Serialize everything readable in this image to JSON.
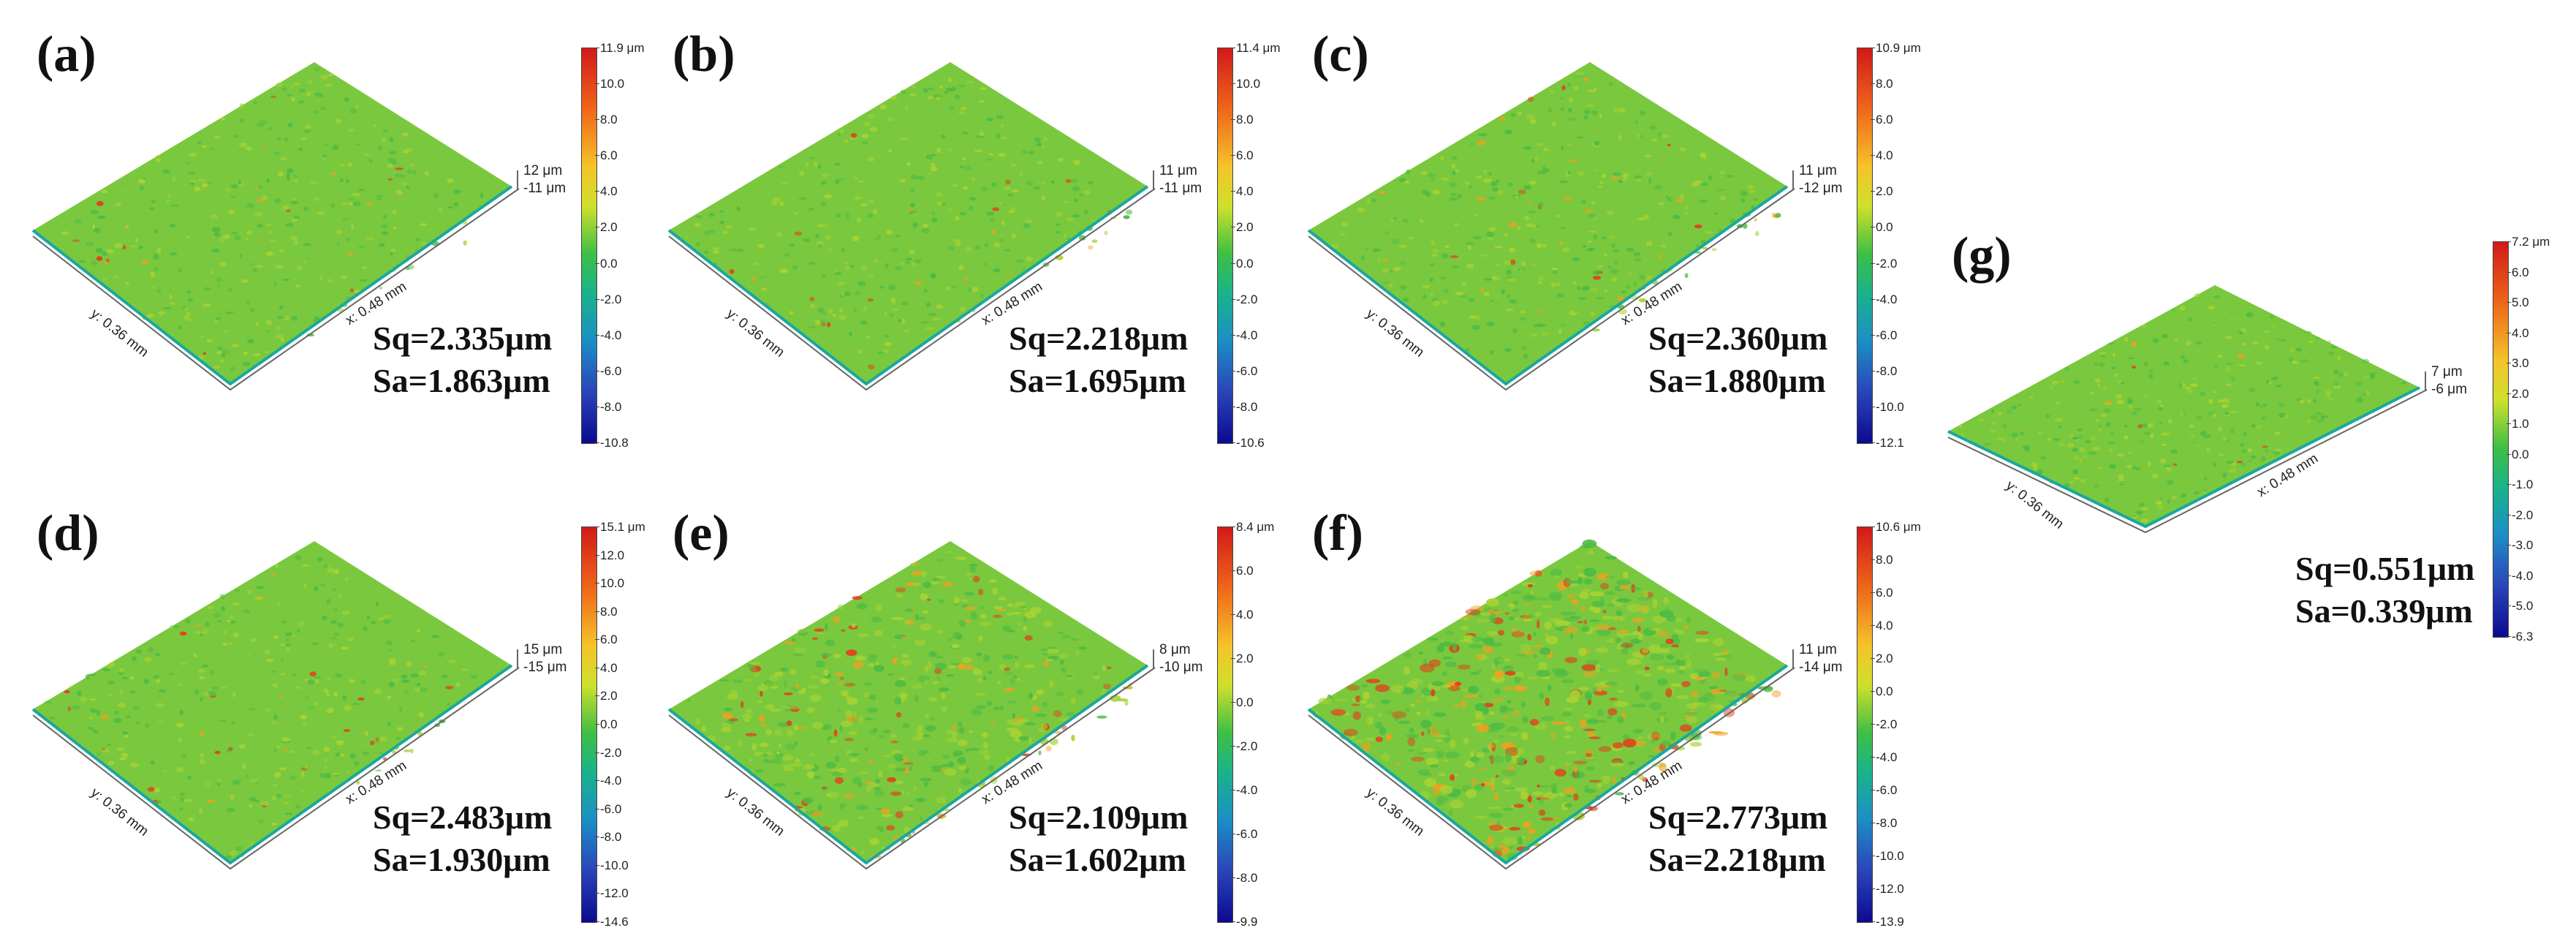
{
  "colors": {
    "surface_base": "#7ac83e",
    "surface_high": "#e2401b",
    "colorbar_top": "#d2191a",
    "colorbar_bottom": "#0c0a90"
  },
  "panels": [
    {
      "label": "(a)",
      "sq": "Sq=2.335μm",
      "sa": "Sa=1.863μm",
      "z_top": "12 μm",
      "z_bot": "-11 μm",
      "x_axis": "x: 0.48 mm",
      "y_axis": "y: 0.36 mm",
      "cbar": [
        "11.9 μm",
        "10.0",
        "8.0",
        "6.0",
        "4.0",
        "2.0",
        "0.0",
        "-2.0",
        "-4.0",
        "-6.0",
        "-8.0",
        "-10.8"
      ],
      "roughness_level": 0.15
    },
    {
      "label": "(b)",
      "sq": "Sq=2.218μm",
      "sa": "Sa=1.695μm",
      "z_top": "11 μm",
      "z_bot": "-11 μm",
      "x_axis": "x: 0.48 mm",
      "y_axis": "y: 0.36 mm",
      "cbar": [
        "11.4 μm",
        "10.0",
        "8.0",
        "6.0",
        "4.0",
        "2.0",
        "0.0",
        "-2.0",
        "-4.0",
        "-6.0",
        "-8.0",
        "-10.6"
      ],
      "roughness_level": 0.15
    },
    {
      "label": "(c)",
      "sq": "Sq=2.360μm",
      "sa": "Sa=1.880μm",
      "z_top": "11 μm",
      "z_bot": "-12 μm",
      "x_axis": "x: 0.48 mm",
      "y_axis": "y: 0.36 mm",
      "cbar": [
        "10.9 μm",
        "8.0",
        "6.0",
        "4.0",
        "2.0",
        "0.0",
        "-2.0",
        "-4.0",
        "-6.0",
        "-8.0",
        "-10.0",
        "-12.1"
      ],
      "roughness_level": 0.2
    },
    {
      "label": "(d)",
      "sq": "Sq=2.483μm",
      "sa": "Sa=1.930μm",
      "z_top": "15 μm",
      "z_bot": "-15 μm",
      "x_axis": "x: 0.48 mm",
      "y_axis": "y: 0.36 mm",
      "cbar": [
        "15.1 μm",
        "12.0",
        "10.0",
        "8.0",
        "6.0",
        "4.0",
        "2.0",
        "0.0",
        "-2.0",
        "-4.0",
        "-6.0",
        "-8.0",
        "-10.0",
        "-12.0",
        "-14.6"
      ],
      "roughness_level": 0.15
    },
    {
      "label": "(e)",
      "sq": "Sq=2.109μm",
      "sa": "Sa=1.602μm",
      "z_top": "8 μm",
      "z_bot": "-10 μm",
      "x_axis": "x: 0.48 mm",
      "y_axis": "y: 0.36 mm",
      "cbar": [
        "8.4 μm",
        "6.0",
        "4.0",
        "2.0",
        "0.0",
        "-2.0",
        "-4.0",
        "-6.0",
        "-8.0",
        "-9.9"
      ],
      "roughness_level": 0.5
    },
    {
      "label": "(f)",
      "sq": "Sq=2.773μm",
      "sa": "Sa=2.218μm",
      "z_top": "11 μm",
      "z_bot": "-14 μm",
      "x_axis": "x: 0.48 mm",
      "y_axis": "y: 0.36 mm",
      "cbar": [
        "10.6 μm",
        "8.0",
        "6.0",
        "4.0",
        "2.0",
        "0.0",
        "-2.0",
        "-4.0",
        "-6.0",
        "-8.0",
        "-10.0",
        "-12.0",
        "-13.9"
      ],
      "roughness_level": 0.8
    },
    {
      "label": "(g)",
      "sq": "Sq=0.551μm",
      "sa": "Sa=0.339μm",
      "z_top": "7 μm",
      "z_bot": "-6 μm",
      "x_axis": "x: 0.48 mm",
      "y_axis": "y: 0.36 mm",
      "cbar": [
        "7.2 μm",
        "6.0",
        "5.0",
        "4.0",
        "3.0",
        "2.0",
        "1.0",
        "0.0",
        "-1.0",
        "-2.0",
        "-3.0",
        "-4.0",
        "-5.0",
        "-6.3"
      ],
      "roughness_level": 0.1
    }
  ]
}
